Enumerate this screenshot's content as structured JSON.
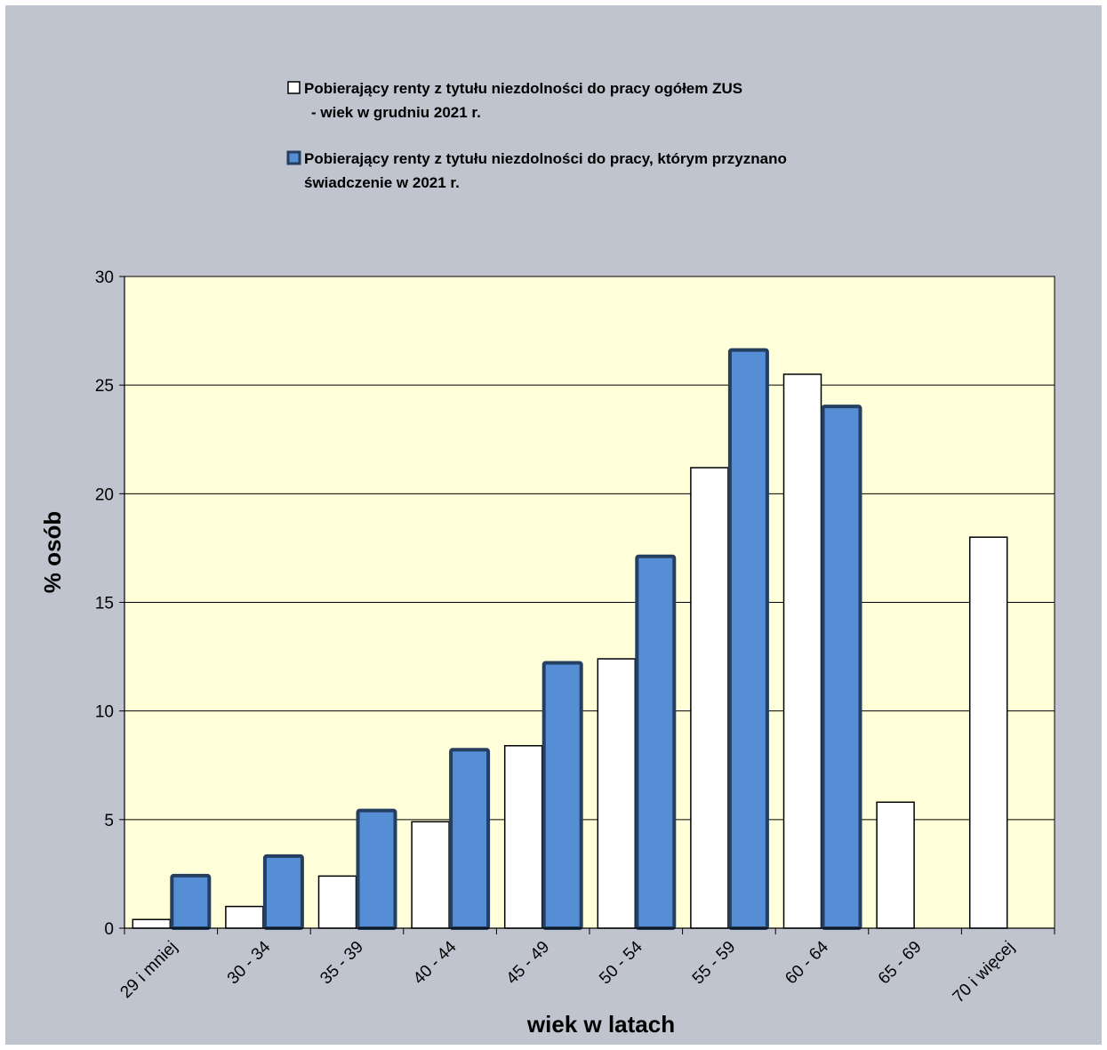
{
  "chart_data": {
    "type": "bar",
    "title": "",
    "xlabel": "wiek w latach",
    "ylabel": "% osób",
    "ylim": [
      0,
      30
    ],
    "yticks": [
      0,
      5,
      10,
      15,
      20,
      25,
      30
    ],
    "grid": true,
    "legend_position": "top",
    "categories": [
      "29 i mniej",
      "30 - 34",
      "35 - 39",
      "40 - 44",
      "45 - 49",
      "50 - 54",
      "55 - 59",
      "60 - 64",
      "65 - 69",
      "70 i więcej"
    ],
    "series": [
      {
        "name": "Pobierający renty z tytułu niezdolności do pracy ogółem ZUS - wiek w grudniu 2021 r.",
        "legend_lines": [
          "Pobierający renty z tytułu niezdolności do pracy ogółem ZUS",
          "- wiek w grudniu 2021 r."
        ],
        "color": "#ffffff",
        "values": [
          0.4,
          1.0,
          2.4,
          4.9,
          8.4,
          12.4,
          21.2,
          25.5,
          5.8,
          18.0
        ]
      },
      {
        "name": "Pobierający renty z tytułu niezdolności do pracy, którym przyznano świadczenie w 2021 r.",
        "legend_lines": [
          "Pobierający renty z tytułu niezdolności do pracy, którym przyznano",
          "świadczenie w 2021 r."
        ],
        "color": "#558ed5",
        "values": [
          2.5,
          3.4,
          5.5,
          8.3,
          12.3,
          17.2,
          26.7,
          24.1,
          null,
          null
        ]
      }
    ],
    "colors": {
      "frame_background": "#c0c4cf",
      "plot_background": "#ffffd9",
      "blue_bar_border": "#243f60",
      "white_bar_border": "#000000"
    }
  }
}
